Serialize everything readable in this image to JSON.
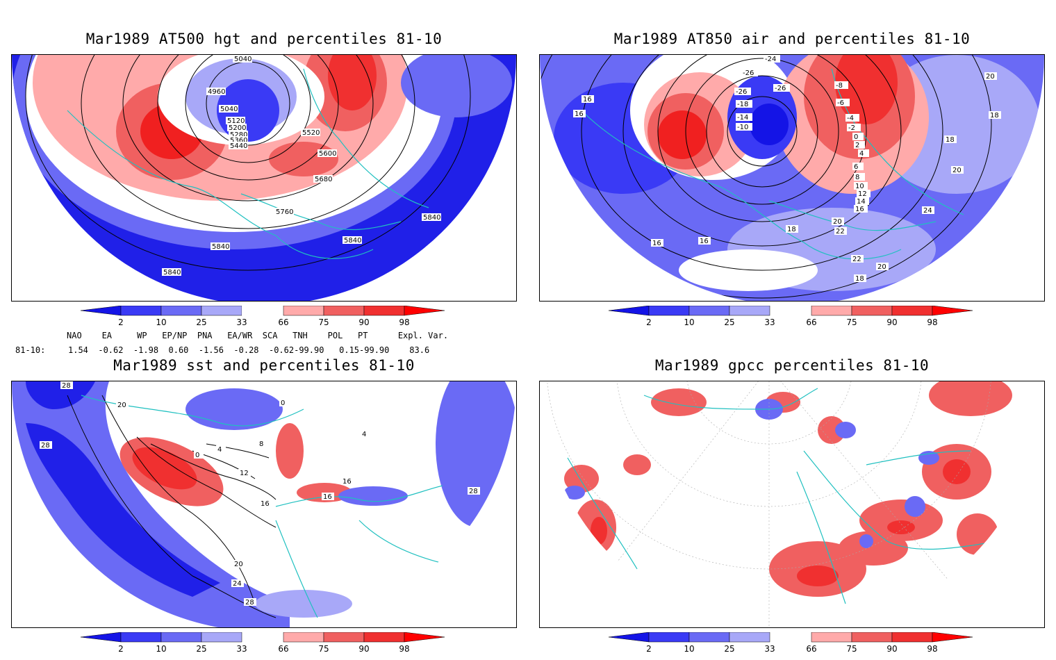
{
  "panels": [
    {
      "title": "Mar1989 AT500 hgt and percentiles 81-10",
      "contour_labels": [
        "5040",
        "4960",
        "5040",
        "5120",
        "5200",
        "5280",
        "5360",
        "5440",
        "5520",
        "5600",
        "5680",
        "5760",
        "5840",
        "5840",
        "5840",
        "5840"
      ]
    },
    {
      "title": "Mar1989 AT850 air and percentiles 81-10",
      "contour_labels": [
        "-24",
        "-26",
        "-26",
        "-26",
        "-18",
        "-14",
        "-10",
        "-8",
        "-6",
        "-4",
        "-2",
        "0",
        "2",
        "4",
        "6",
        "8",
        "10",
        "12",
        "14",
        "16",
        "16",
        "16",
        "16",
        "16",
        "18",
        "18",
        "18",
        "18",
        "20",
        "20",
        "20",
        "20",
        "22",
        "22",
        "24"
      ]
    },
    {
      "title": "Mar1989 sst and percentiles 81-10",
      "contour_labels": [
        "28",
        "20",
        "28",
        "0",
        "0",
        "4",
        "8",
        "12",
        "16",
        "16",
        "16",
        "20",
        "24",
        "28",
        "28",
        "4"
      ]
    },
    {
      "title": "Mar1989 gpcc percentiles 81-10",
      "contour_labels": []
    }
  ],
  "colorbar": {
    "ticks": [
      "2",
      "10",
      "25",
      "33",
      "66",
      "75",
      "90",
      "98"
    ],
    "colors": [
      "#1414e6",
      "#3a3af5",
      "#6a6af5",
      "#a8a8f8",
      "#ffffff",
      "#ffaaaa",
      "#f06060",
      "#f03030",
      "#ff0000"
    ]
  },
  "indices": {
    "headers": "NAO    EA     WP   EP/NP  PNA   EA/WR  SCA   TNH    POL   PT      Expl. Var.",
    "row_label": "81-10:",
    "values": "1.54  -0.62  -1.98  0.60  -1.56  -0.28  -0.62-99.90   0.15-99.90    83.6"
  }
}
